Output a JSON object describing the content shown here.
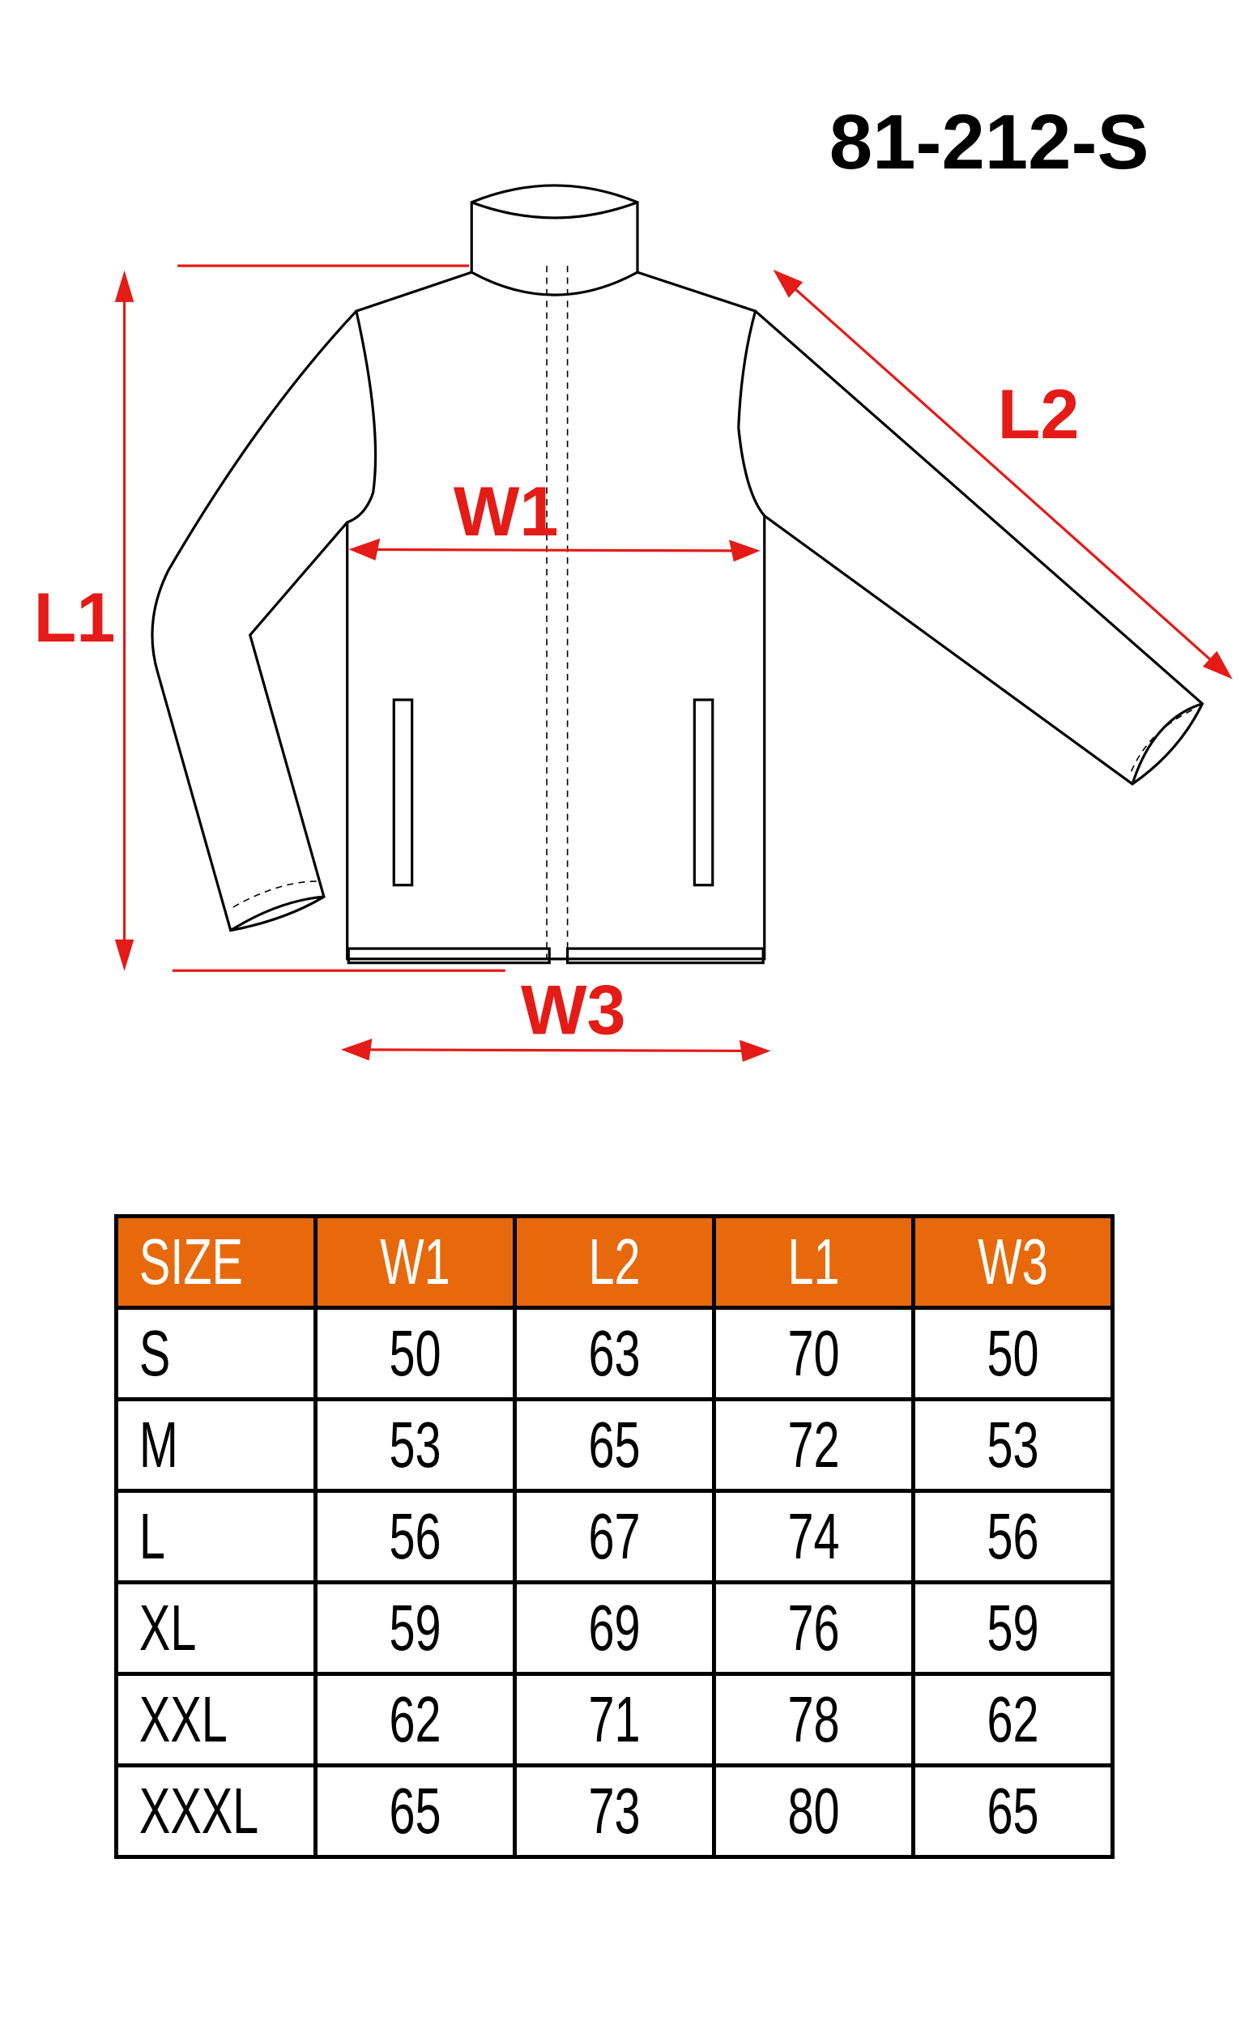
{
  "product_code": "81-212-S",
  "diagram_labels": {
    "w1": "W1",
    "l1": "L1",
    "l2": "L2",
    "w3": "W3"
  },
  "colors": {
    "header_orange": "#E8690B",
    "measure_red": "#E41B17"
  },
  "table": {
    "headers": [
      "SIZE",
      "W1",
      "L2",
      "L1",
      "W3"
    ],
    "rows": [
      [
        "S",
        "50",
        "63",
        "70",
        "50"
      ],
      [
        "M",
        "53",
        "65",
        "72",
        "53"
      ],
      [
        "L",
        "56",
        "67",
        "74",
        "56"
      ],
      [
        "XL",
        "59",
        "69",
        "76",
        "59"
      ],
      [
        "XXL",
        "62",
        "71",
        "78",
        "62"
      ],
      [
        "XXXL",
        "65",
        "73",
        "80",
        "65"
      ]
    ]
  }
}
